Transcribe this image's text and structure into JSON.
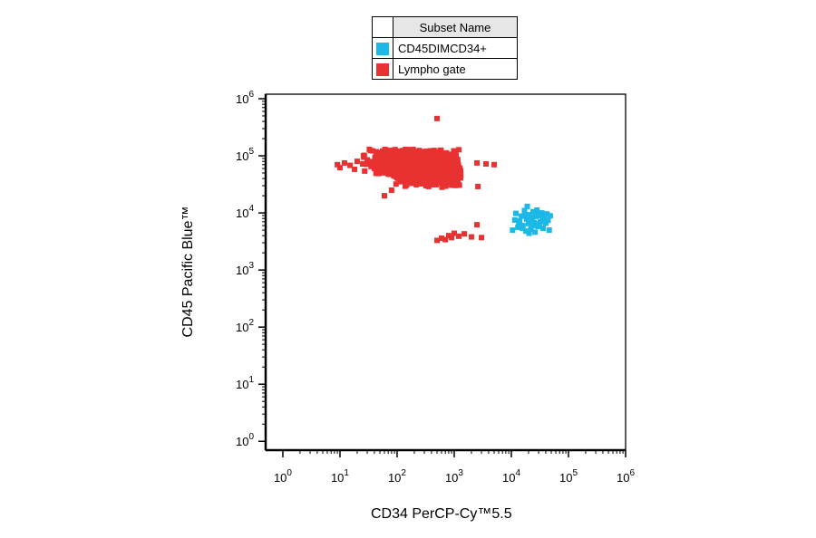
{
  "legend": {
    "header": "Subset Name",
    "items": [
      {
        "label": "CD45DIMCD34+",
        "color": "#1cb8e8"
      },
      {
        "label": "Lympho gate",
        "color": "#e83232"
      }
    ]
  },
  "chart_data": {
    "type": "scatter",
    "title": "",
    "xlabel": "CD34 PerCP-Cy™5.5",
    "ylabel": "CD45 Pacific Blue™",
    "xscale": "log",
    "yscale": "log",
    "xlim": [
      0.5,
      1000000
    ],
    "ylim": [
      0.7,
      1200000
    ],
    "grid": false,
    "legend_position": "top-center",
    "x_ticks": [
      {
        "value": 1,
        "base": "10",
        "exp": "0"
      },
      {
        "value": 10,
        "base": "10",
        "exp": "1"
      },
      {
        "value": 100,
        "base": "10",
        "exp": "2"
      },
      {
        "value": 1000,
        "base": "10",
        "exp": "3"
      },
      {
        "value": 10000,
        "base": "10",
        "exp": "4"
      },
      {
        "value": 100000,
        "base": "10",
        "exp": "5"
      },
      {
        "value": 1000000,
        "base": "10",
        "exp": "6"
      }
    ],
    "y_ticks": [
      {
        "value": 1,
        "base": "10",
        "exp": "0"
      },
      {
        "value": 10,
        "base": "10",
        "exp": "1"
      },
      {
        "value": 100,
        "base": "10",
        "exp": "2"
      },
      {
        "value": 1000,
        "base": "10",
        "exp": "3"
      },
      {
        "value": 10000,
        "base": "10",
        "exp": "4"
      },
      {
        "value": 100000,
        "base": "10",
        "exp": "5"
      },
      {
        "value": 1000000,
        "base": "10",
        "exp": "6"
      }
    ],
    "series": [
      {
        "name": "Lympho gate",
        "color": "#e83232",
        "points": [
          [
            500,
            450000
          ],
          [
            9,
            70000
          ],
          [
            10,
            62000
          ],
          [
            12,
            75000
          ],
          [
            15,
            68000
          ],
          [
            18,
            58000
          ],
          [
            20,
            80000
          ],
          [
            25,
            72000
          ],
          [
            30,
            85000
          ],
          [
            35,
            65000
          ],
          [
            40,
            60000
          ],
          [
            45,
            90000
          ],
          [
            50,
            55000
          ],
          [
            60,
            95000
          ],
          [
            70,
            48000
          ],
          [
            80,
            100000
          ],
          [
            90,
            52000
          ],
          [
            100,
            110000
          ],
          [
            110,
            45000
          ],
          [
            120,
            88000
          ],
          [
            130,
            62000
          ],
          [
            140,
            40000
          ],
          [
            150,
            105000
          ],
          [
            160,
            70000
          ],
          [
            170,
            36000
          ],
          [
            180,
            95000
          ],
          [
            200,
            58000
          ],
          [
            220,
            120000
          ],
          [
            240,
            33000
          ],
          [
            260,
            84000
          ],
          [
            280,
            46000
          ],
          [
            300,
            115000
          ],
          [
            320,
            30000
          ],
          [
            350,
            76000
          ],
          [
            380,
            52000
          ],
          [
            400,
            108000
          ],
          [
            430,
            38000
          ],
          [
            460,
            68000
          ],
          [
            500,
            92000
          ],
          [
            550,
            44000
          ],
          [
            600,
            78000
          ],
          [
            650,
            60000
          ],
          [
            700,
            96000
          ],
          [
            750,
            50000
          ],
          [
            800,
            72000
          ],
          [
            900,
            58000
          ],
          [
            1000,
            66000
          ],
          [
            1100,
            80000
          ],
          [
            1200,
            54000
          ],
          [
            60,
            20000
          ],
          [
            80,
            25000
          ],
          [
            2500,
            75000
          ],
          [
            3600,
            72000
          ],
          [
            2600,
            29000
          ],
          [
            5000,
            70000
          ],
          [
            500,
            3300
          ],
          [
            600,
            3600
          ],
          [
            700,
            3400
          ],
          [
            800,
            4000
          ],
          [
            900,
            3700
          ],
          [
            1000,
            4400
          ],
          [
            1200,
            3900
          ],
          [
            1500,
            4300
          ],
          [
            2000,
            3800
          ],
          [
            2500,
            6200
          ],
          [
            3000,
            3700
          ]
        ],
        "dense_cluster": {
          "x_range": [
            25,
            1300
          ],
          "y_range": [
            28000,
            130000
          ],
          "center": [
            300,
            65000
          ]
        }
      },
      {
        "name": "CD45DIMCD34+",
        "color": "#1cb8e8",
        "points": [
          [
            10500,
            5000
          ],
          [
            11500,
            7500
          ],
          [
            12000,
            9800
          ],
          [
            13000,
            5600
          ],
          [
            14000,
            7200
          ],
          [
            15000,
            8800
          ],
          [
            16000,
            6000
          ],
          [
            17000,
            11000
          ],
          [
            18000,
            4800
          ],
          [
            18500,
            7800
          ],
          [
            19000,
            13000
          ],
          [
            20000,
            6500
          ],
          [
            21000,
            9300
          ],
          [
            22000,
            5200
          ],
          [
            23000,
            8200
          ],
          [
            24000,
            10500
          ],
          [
            25000,
            6800
          ],
          [
            26000,
            4600
          ],
          [
            27000,
            8700
          ],
          [
            28000,
            11200
          ],
          [
            29000,
            5800
          ],
          [
            30000,
            9000
          ],
          [
            32000,
            7000
          ],
          [
            34000,
            10000
          ],
          [
            36000,
            5400
          ],
          [
            38000,
            8400
          ],
          [
            40000,
            6600
          ],
          [
            42000,
            9600
          ],
          [
            44000,
            7400
          ],
          [
            46000,
            5000
          ],
          [
            48000,
            8900
          ],
          [
            13500,
            6200
          ],
          [
            15500,
            5400
          ],
          [
            17500,
            9200
          ],
          [
            19500,
            8200
          ],
          [
            22500,
            7000
          ],
          [
            24500,
            6000
          ],
          [
            26500,
            9800
          ],
          [
            31000,
            6400
          ],
          [
            35000,
            8200
          ],
          [
            37000,
            7200
          ],
          [
            20500,
            4400
          ]
        ]
      }
    ]
  }
}
